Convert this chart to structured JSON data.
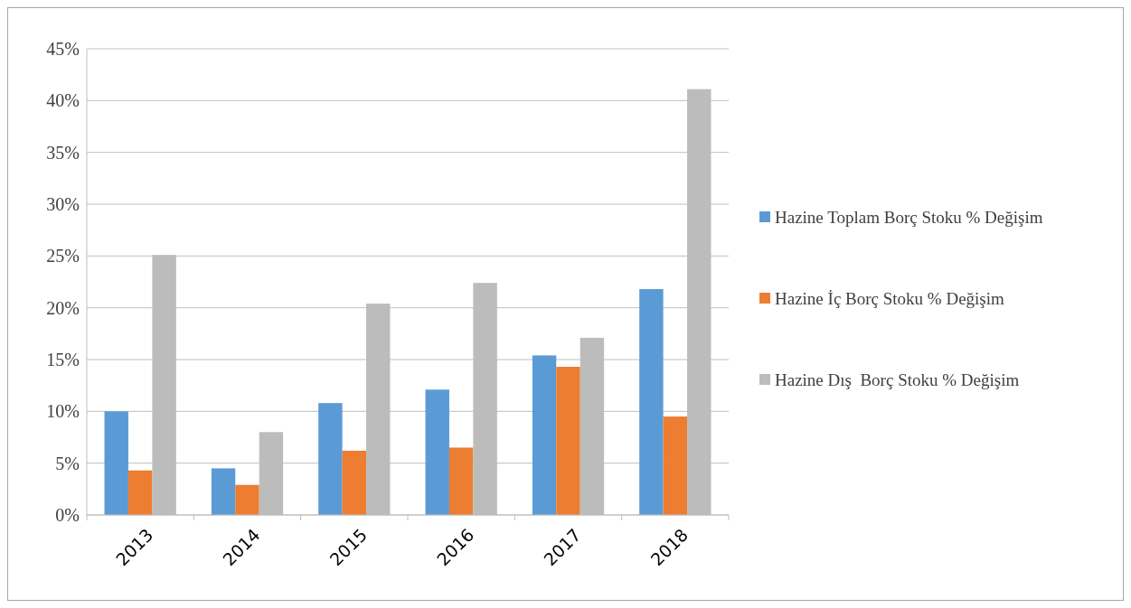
{
  "chart_data": {
    "type": "bar",
    "categories": [
      "2013",
      "2014",
      "2015",
      "2016",
      "2017",
      "2018"
    ],
    "series": [
      {
        "name": "Hazine Toplam Borç Stoku % Değişim",
        "color": "#5b9bd5",
        "values": [
          10.0,
          4.5,
          10.8,
          12.1,
          15.4,
          21.8
        ]
      },
      {
        "name": "Hazine İç Borç Stoku % Değişim",
        "color": "#ed7d31",
        "values": [
          4.3,
          2.9,
          6.2,
          6.5,
          14.3,
          9.5
        ]
      },
      {
        "name": "Hazine Dış  Borç Stoku % Değişim",
        "color": "#bcbcbc",
        "values": [
          25.1,
          8.0,
          20.4,
          22.4,
          17.1,
          41.1
        ]
      }
    ],
    "ylim": [
      0,
      45
    ],
    "yticks": [
      {
        "value": 0,
        "label": "0%"
      },
      {
        "value": 5,
        "label": "5%"
      },
      {
        "value": 10,
        "label": "10%"
      },
      {
        "value": 15,
        "label": "15%"
      },
      {
        "value": 20,
        "label": "20%"
      },
      {
        "value": 25,
        "label": "25%"
      },
      {
        "value": 30,
        "label": "30%"
      },
      {
        "value": 35,
        "label": "35%"
      },
      {
        "value": 40,
        "label": "40%"
      },
      {
        "value": 45,
        "label": "45%"
      }
    ],
    "grid": "y",
    "legend": "right"
  }
}
